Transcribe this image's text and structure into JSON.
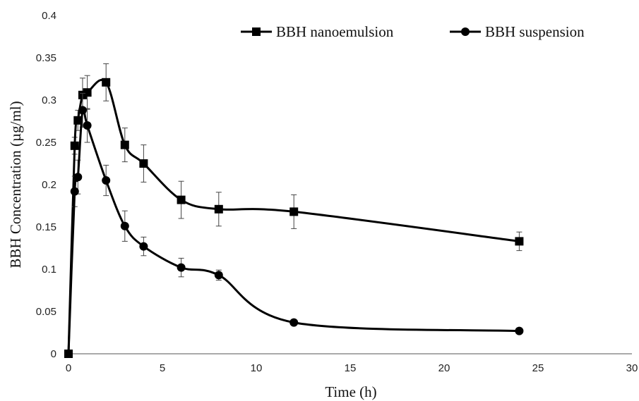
{
  "chart_data": {
    "type": "line",
    "xlabel": "Time (h)",
    "ylabel": "BBH Concentration (µg/ml)",
    "xlim": [
      0,
      30
    ],
    "ylim": [
      0,
      0.4
    ],
    "x_ticks": [
      "0",
      "5",
      "10",
      "15",
      "20",
      "25",
      "30"
    ],
    "y_ticks": [
      "0",
      "0.05",
      "0.1",
      "0.15",
      "0.2",
      "0.25",
      "0.3",
      "0.35",
      "0.4"
    ],
    "grid": false,
    "legend_position": "top-right",
    "series": [
      {
        "name": "BBH nanoemulsion",
        "marker": "square",
        "color": "#000000",
        "points": [
          {
            "x": 0,
            "y": 0,
            "err": 0
          },
          {
            "x": 0.33,
            "y": 0.246,
            "err": 0.01
          },
          {
            "x": 0.5,
            "y": 0.276,
            "err": 0.012
          },
          {
            "x": 0.75,
            "y": 0.306,
            "err": 0.02
          },
          {
            "x": 1,
            "y": 0.309,
            "err": 0.02
          },
          {
            "x": 2,
            "y": 0.321,
            "err": 0.022
          },
          {
            "x": 3,
            "y": 0.247,
            "err": 0.02
          },
          {
            "x": 4,
            "y": 0.225,
            "err": 0.022
          },
          {
            "x": 6,
            "y": 0.182,
            "err": 0.022
          },
          {
            "x": 8,
            "y": 0.171,
            "err": 0.02
          },
          {
            "x": 12,
            "y": 0.168,
            "err": 0.02
          },
          {
            "x": 24,
            "y": 0.133,
            "err": 0.011
          }
        ]
      },
      {
        "name": "BBH suspension",
        "marker": "circle",
        "color": "#000000",
        "points": [
          {
            "x": 0,
            "y": 0,
            "err": 0
          },
          {
            "x": 0.33,
            "y": 0.192,
            "err": 0.018
          },
          {
            "x": 0.5,
            "y": 0.209,
            "err": 0.02
          },
          {
            "x": 0.75,
            "y": 0.288,
            "err": 0.02
          },
          {
            "x": 1,
            "y": 0.27,
            "err": 0.02
          },
          {
            "x": 2,
            "y": 0.205,
            "err": 0.018
          },
          {
            "x": 3,
            "y": 0.151,
            "err": 0.018
          },
          {
            "x": 4,
            "y": 0.127,
            "err": 0.011
          },
          {
            "x": 6,
            "y": 0.102,
            "err": 0.011
          },
          {
            "x": 8,
            "y": 0.093,
            "err": 0.006
          },
          {
            "x": 12,
            "y": 0.037,
            "err": 0
          },
          {
            "x": 24,
            "y": 0.027,
            "err": 0
          }
        ]
      }
    ]
  }
}
